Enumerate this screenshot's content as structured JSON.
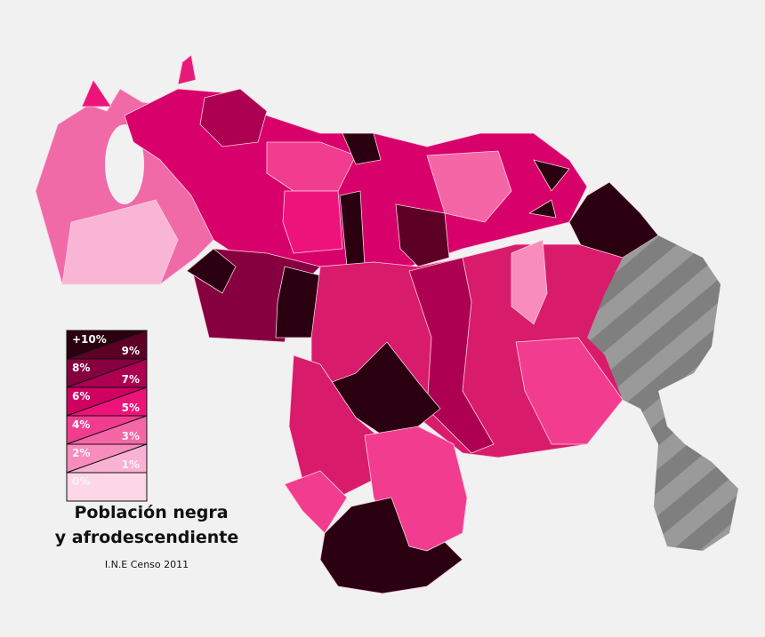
{
  "title_lines": [
    "Población negra",
    "y afrodescendiente"
  ],
  "source": "I.N.E Censo 2011",
  "legend": [
    {
      "label": "+10%",
      "color": "#2b0010"
    },
    {
      "label": "9%",
      "color": "#5c0026"
    },
    {
      "label": "8%",
      "color": "#860040"
    },
    {
      "label": "7%",
      "color": "#ad0052"
    },
    {
      "label": "6%",
      "color": "#cf0061"
    },
    {
      "label": "5%",
      "color": "#ee137a"
    },
    {
      "label": "4%",
      "color": "#f23c8f"
    },
    {
      "label": "3%",
      "color": "#f566a6"
    },
    {
      "label": "2%",
      "color": "#f88cbd"
    },
    {
      "label": "1%",
      "color": "#fab2d3"
    },
    {
      "label": "0%",
      "color": "#fdd6e8"
    }
  ]
}
